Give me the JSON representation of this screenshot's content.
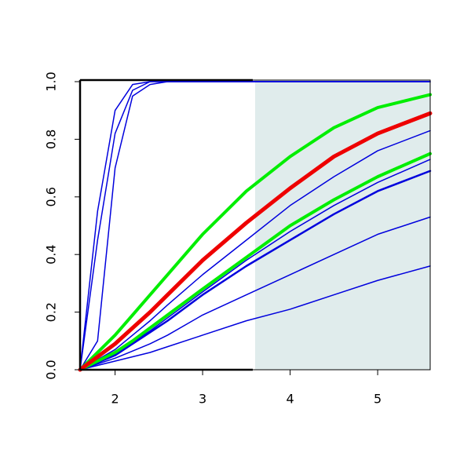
{
  "chart_data": {
    "type": "line",
    "x": [
      1.6,
      1.8,
      2,
      2.2,
      2.4,
      2.6,
      3,
      3.5,
      4,
      4.5,
      5,
      5.6
    ],
    "xlim": [
      1.6,
      5.6
    ],
    "xticks": [
      2,
      3,
      4,
      5
    ],
    "ylim": [
      0,
      1
    ],
    "yticks": [
      {
        "value": 0,
        "label": "0.0"
      },
      {
        "value": 0.2,
        "label": "0.2"
      },
      {
        "value": 0.4,
        "label": "0.4"
      },
      {
        "value": 0.6,
        "label": "0.6"
      },
      {
        "value": 0.8,
        "label": "0.8"
      },
      {
        "value": 1,
        "label": "1.0"
      }
    ],
    "shade": {
      "xlim": [
        3.6,
        5.6
      ],
      "color": "#e0ecec"
    },
    "series": [
      {
        "color": "#0000dd",
        "width": 1.5,
        "values": [
          0,
          0.55,
          0.9,
          0.99,
          1,
          1,
          1,
          1,
          1,
          1,
          1,
          1
        ]
      },
      {
        "color": "#0000dd",
        "width": 1.5,
        "values": [
          0,
          0.45,
          0.82,
          0.97,
          1,
          1,
          1,
          1,
          1,
          1,
          1,
          1
        ]
      },
      {
        "color": "#0000dd",
        "width": 1.5,
        "values": [
          0,
          0.1,
          0.7,
          0.95,
          0.99,
          1,
          1,
          1,
          1,
          1,
          1,
          1
        ]
      },
      {
        "color": "#0000dd",
        "width": 1.5,
        "values": [
          0,
          0.015,
          0.03,
          0.045,
          0.06,
          0.08,
          0.12,
          0.17,
          0.21,
          0.26,
          0.31,
          0.36
        ]
      },
      {
        "color": "#0000dd",
        "width": 1.5,
        "values": [
          0,
          0.02,
          0.04,
          0.065,
          0.09,
          0.12,
          0.19,
          0.26,
          0.33,
          0.4,
          0.47,
          0.53
        ]
      },
      {
        "color": "#0000dd",
        "width": 2.5,
        "values": [
          0,
          0.025,
          0.05,
          0.09,
          0.13,
          0.17,
          0.26,
          0.36,
          0.45,
          0.54,
          0.62,
          0.69
        ]
      },
      {
        "color": "#0000dd",
        "width": 1.5,
        "values": [
          0,
          0.028,
          0.055,
          0.095,
          0.135,
          0.18,
          0.27,
          0.38,
          0.48,
          0.57,
          0.65,
          0.73
        ]
      },
      {
        "color": "#0000dd",
        "width": 1.5,
        "values": [
          0,
          0.035,
          0.07,
          0.12,
          0.17,
          0.225,
          0.33,
          0.45,
          0.57,
          0.67,
          0.76,
          0.83
        ]
      },
      {
        "color": "#00ee00",
        "width": 4,
        "values": [
          0,
          0.03,
          0.06,
          0.1,
          0.145,
          0.19,
          0.28,
          0.39,
          0.5,
          0.59,
          0.67,
          0.75
        ]
      },
      {
        "color": "#00ee00",
        "width": 4,
        "values": [
          0,
          0.06,
          0.12,
          0.19,
          0.26,
          0.33,
          0.47,
          0.62,
          0.74,
          0.84,
          0.91,
          0.955
        ]
      },
      {
        "color": "#ee0000",
        "width": 5,
        "values": [
          0,
          0.045,
          0.09,
          0.145,
          0.2,
          0.26,
          0.38,
          0.51,
          0.63,
          0.74,
          0.82,
          0.89
        ]
      }
    ]
  }
}
